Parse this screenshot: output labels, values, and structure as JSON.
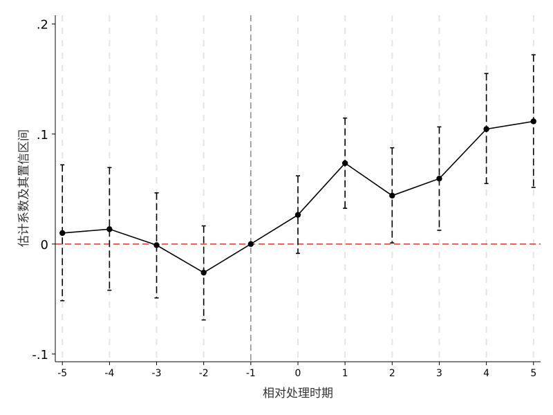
{
  "chart_data": {
    "type": "line",
    "title": "",
    "xlabel": "相对处理时期",
    "ylabel": "估计系数及其置信区间",
    "categories": [
      "-5",
      "-4",
      "-3",
      "-2",
      "-1",
      "0",
      "1",
      "2",
      "3",
      "4",
      "5"
    ],
    "x": [
      -5,
      -4,
      -3,
      -2,
      -1,
      0,
      1,
      2,
      3,
      4,
      5
    ],
    "series": [
      {
        "values": [
          0.01,
          0.0135,
          -0.001,
          -0.026,
          0.0,
          0.0265,
          0.0735,
          0.044,
          0.0595,
          0.1045,
          0.1115
        ],
        "ci_lower": [
          -0.0515,
          -0.042,
          -0.049,
          -0.069,
          0.0,
          -0.0085,
          0.0325,
          0.001,
          0.0125,
          0.055,
          0.0515
        ],
        "ci_upper": [
          0.072,
          0.0695,
          0.0465,
          0.0165,
          0.0,
          0.062,
          0.1145,
          0.0875,
          0.1065,
          0.155,
          0.172
        ]
      }
    ],
    "xlim": [
      -5.15,
      5.15
    ],
    "ylim": [
      -0.107,
      0.208
    ],
    "y_ticks": [
      0.2,
      0.1,
      0,
      -0.1
    ],
    "y_tick_labels": [
      ".2",
      ".1",
      "0",
      "-.1"
    ],
    "x_tick_labels": [
      "-5",
      "-4",
      "-3",
      "-2",
      "-1",
      "0",
      "1",
      "2",
      "3",
      "4",
      "5"
    ],
    "reference_lines": {
      "horizontal": {
        "value": 0,
        "color": "#e0302a",
        "style": "dashed"
      },
      "vertical": {
        "value": -1,
        "color": "#8a8a8a",
        "style": "dashed"
      }
    },
    "grid": "vertical-dashed",
    "colors": {
      "line": "#000000",
      "marker": "#000000",
      "ci": "#000000",
      "grid": "#e4e4e4",
      "zero_line": "#e0302a",
      "treatment_line": "#8a8a8a"
    }
  }
}
